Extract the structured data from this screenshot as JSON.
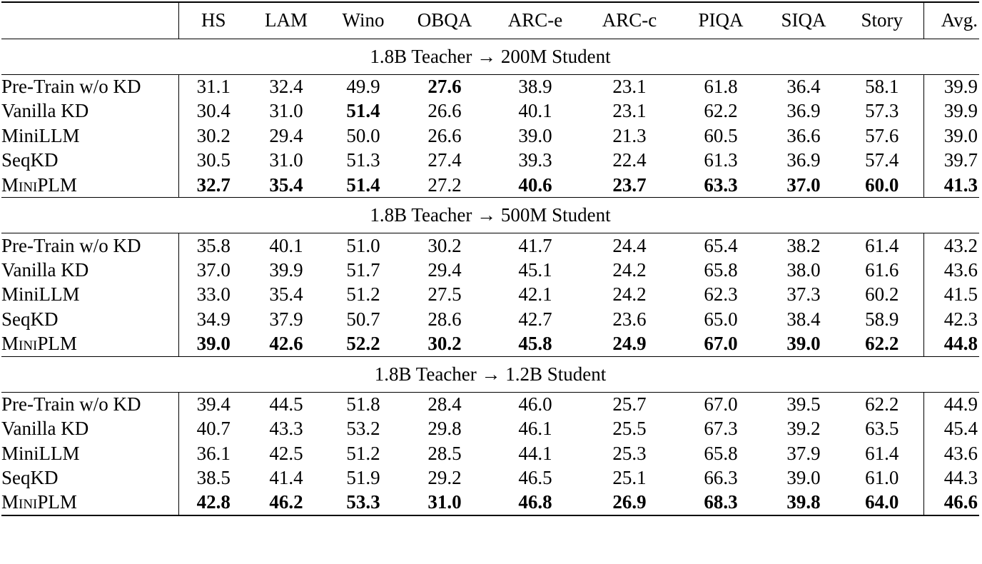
{
  "columns": [
    "HS",
    "LAM",
    "Wino",
    "OBQA",
    "ARC-e",
    "ARC-c",
    "PIQA",
    "SIQA",
    "Story",
    "Avg."
  ],
  "sections": [
    {
      "title": "1.8B Teacher → 200M Student",
      "rows": [
        {
          "name": "Pre-Train w/o KD",
          "values": [
            "31.1",
            "32.4",
            "49.9",
            "27.6",
            "38.9",
            "23.1",
            "61.8",
            "36.4",
            "58.1",
            "39.9"
          ],
          "bold": [
            false,
            false,
            false,
            true,
            false,
            false,
            false,
            false,
            false,
            false
          ]
        },
        {
          "name": "Vanilla KD",
          "values": [
            "30.4",
            "31.0",
            "51.4",
            "26.6",
            "40.1",
            "23.1",
            "62.2",
            "36.9",
            "57.3",
            "39.9"
          ],
          "bold": [
            false,
            false,
            true,
            false,
            false,
            false,
            false,
            false,
            false,
            false
          ]
        },
        {
          "name": "MiniLLM",
          "values": [
            "30.2",
            "29.4",
            "50.0",
            "26.6",
            "39.0",
            "21.3",
            "60.5",
            "36.6",
            "57.6",
            "39.0"
          ],
          "bold": [
            false,
            false,
            false,
            false,
            false,
            false,
            false,
            false,
            false,
            false
          ]
        },
        {
          "name": "SeqKD",
          "values": [
            "30.5",
            "31.0",
            "51.3",
            "27.4",
            "39.3",
            "22.4",
            "61.3",
            "36.9",
            "57.4",
            "39.7"
          ],
          "bold": [
            false,
            false,
            false,
            false,
            false,
            false,
            false,
            false,
            false,
            false
          ]
        },
        {
          "name": "MiniPLM",
          "values": [
            "32.7",
            "35.4",
            "51.4",
            "27.2",
            "40.6",
            "23.7",
            "63.3",
            "37.0",
            "60.0",
            "41.3"
          ],
          "bold": [
            true,
            true,
            true,
            false,
            true,
            true,
            true,
            true,
            true,
            true
          ]
        }
      ]
    },
    {
      "title": "1.8B Teacher → 500M Student",
      "rows": [
        {
          "name": "Pre-Train w/o KD",
          "values": [
            "35.8",
            "40.1",
            "51.0",
            "30.2",
            "41.7",
            "24.4",
            "65.4",
            "38.2",
            "61.4",
            "43.2"
          ],
          "bold": [
            false,
            false,
            false,
            false,
            false,
            false,
            false,
            false,
            false,
            false
          ]
        },
        {
          "name": "Vanilla KD",
          "values": [
            "37.0",
            "39.9",
            "51.7",
            "29.4",
            "45.1",
            "24.2",
            "65.8",
            "38.0",
            "61.6",
            "43.6"
          ],
          "bold": [
            false,
            false,
            false,
            false,
            false,
            false,
            false,
            false,
            false,
            false
          ]
        },
        {
          "name": "MiniLLM",
          "values": [
            "33.0",
            "35.4",
            "51.2",
            "27.5",
            "42.1",
            "24.2",
            "62.3",
            "37.3",
            "60.2",
            "41.5"
          ],
          "bold": [
            false,
            false,
            false,
            false,
            false,
            false,
            false,
            false,
            false,
            false
          ]
        },
        {
          "name": "SeqKD",
          "values": [
            "34.9",
            "37.9",
            "50.7",
            "28.6",
            "42.7",
            "23.6",
            "65.0",
            "38.4",
            "58.9",
            "42.3"
          ],
          "bold": [
            false,
            false,
            false,
            false,
            false,
            false,
            false,
            false,
            false,
            false
          ]
        },
        {
          "name": "MiniPLM",
          "values": [
            "39.0",
            "42.6",
            "52.2",
            "30.2",
            "45.8",
            "24.9",
            "67.0",
            "39.0",
            "62.2",
            "44.8"
          ],
          "bold": [
            true,
            true,
            true,
            true,
            true,
            true,
            true,
            true,
            true,
            true
          ]
        }
      ]
    },
    {
      "title": "1.8B Teacher → 1.2B Student",
      "rows": [
        {
          "name": "Pre-Train w/o KD",
          "values": [
            "39.4",
            "44.5",
            "51.8",
            "28.4",
            "46.0",
            "25.7",
            "67.0",
            "39.5",
            "62.2",
            "44.9"
          ],
          "bold": [
            false,
            false,
            false,
            false,
            false,
            false,
            false,
            false,
            false,
            false
          ]
        },
        {
          "name": "Vanilla KD",
          "values": [
            "40.7",
            "43.3",
            "53.2",
            "29.8",
            "46.1",
            "25.5",
            "67.3",
            "39.2",
            "63.5",
            "45.4"
          ],
          "bold": [
            false,
            false,
            false,
            false,
            false,
            false,
            false,
            false,
            false,
            false
          ]
        },
        {
          "name": "MiniLLM",
          "values": [
            "36.1",
            "42.5",
            "51.2",
            "28.5",
            "44.1",
            "25.3",
            "65.8",
            "37.9",
            "61.4",
            "43.6"
          ],
          "bold": [
            false,
            false,
            false,
            false,
            false,
            false,
            false,
            false,
            false,
            false
          ]
        },
        {
          "name": "SeqKD",
          "values": [
            "38.5",
            "41.4",
            "51.9",
            "29.2",
            "46.5",
            "25.1",
            "66.3",
            "39.0",
            "61.0",
            "44.3"
          ],
          "bold": [
            false,
            false,
            false,
            false,
            false,
            false,
            false,
            false,
            false,
            false
          ]
        },
        {
          "name": "MiniPLM",
          "values": [
            "42.8",
            "46.2",
            "53.3",
            "31.0",
            "46.8",
            "26.9",
            "68.3",
            "39.8",
            "64.0",
            "46.6"
          ],
          "bold": [
            true,
            true,
            true,
            true,
            true,
            true,
            true,
            true,
            true,
            true
          ]
        }
      ]
    }
  ]
}
